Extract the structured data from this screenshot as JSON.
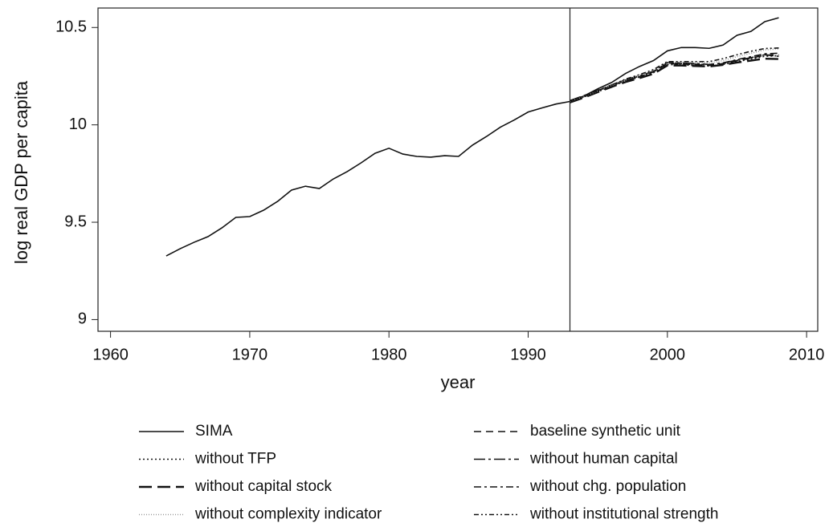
{
  "chart_data": {
    "type": "line",
    "x_label": "year",
    "y_label": "log real GDP per capita",
    "x": [
      1964,
      1965,
      1966,
      1967,
      1968,
      1969,
      1970,
      1971,
      1972,
      1973,
      1974,
      1975,
      1976,
      1977,
      1978,
      1979,
      1980,
      1981,
      1982,
      1983,
      1984,
      1985,
      1986,
      1987,
      1988,
      1989,
      1990,
      1991,
      1992,
      1993,
      1994,
      1995,
      1996,
      1997,
      1998,
      1999,
      2000,
      2001,
      2002,
      2003,
      2004,
      2005,
      2006,
      2007,
      2008
    ],
    "xlim": [
      1959.1,
      2010.8
    ],
    "xticks": [
      1960,
      1970,
      1980,
      1990,
      2000,
      2010
    ],
    "ylim": [
      8.94,
      10.6
    ],
    "yticks": [
      9,
      9.5,
      10,
      10.5
    ],
    "vline": 1993,
    "series": [
      {
        "name": "SIMA",
        "color": "#111111",
        "style": "solid",
        "values": [
          9.327,
          9.364,
          9.397,
          9.426,
          9.471,
          9.525,
          9.529,
          9.562,
          9.607,
          9.665,
          9.685,
          9.673,
          9.722,
          9.76,
          9.805,
          9.854,
          9.88,
          9.85,
          9.838,
          9.834,
          9.842,
          9.838,
          9.896,
          9.94,
          9.988,
          10.025,
          10.066,
          10.087,
          10.107,
          10.12,
          10.148,
          10.185,
          10.218,
          10.264,
          10.3,
          10.33,
          10.38,
          10.397,
          10.397,
          10.393,
          10.41,
          10.46,
          10.48,
          10.53,
          10.55
        ]
      },
      {
        "name": "baseline synthetic unit",
        "color": "#111111",
        "style": "dashed",
        "values": [
          null,
          null,
          null,
          null,
          null,
          null,
          null,
          null,
          null,
          null,
          null,
          null,
          null,
          null,
          null,
          null,
          null,
          null,
          null,
          null,
          null,
          null,
          null,
          null,
          null,
          null,
          null,
          null,
          null,
          10.12,
          10.145,
          10.172,
          10.2,
          10.228,
          10.248,
          10.272,
          10.315,
          10.312,
          10.31,
          10.305,
          10.315,
          10.33,
          10.342,
          10.358,
          10.36
        ]
      },
      {
        "name": "without TFP",
        "color": "#111111",
        "style": "dotted",
        "values": [
          null,
          null,
          null,
          null,
          null,
          null,
          null,
          null,
          null,
          null,
          null,
          null,
          null,
          null,
          null,
          null,
          null,
          null,
          null,
          null,
          null,
          null,
          null,
          null,
          null,
          null,
          null,
          null,
          null,
          10.118,
          10.143,
          10.17,
          10.198,
          10.225,
          10.245,
          10.268,
          10.31,
          10.308,
          10.305,
          10.302,
          10.31,
          10.325,
          10.338,
          10.352,
          10.355
        ]
      },
      {
        "name": "without human capital",
        "color": "#111111",
        "style": "longdashdot",
        "values": [
          null,
          null,
          null,
          null,
          null,
          null,
          null,
          null,
          null,
          null,
          null,
          null,
          null,
          null,
          null,
          null,
          null,
          null,
          null,
          null,
          null,
          null,
          null,
          null,
          null,
          null,
          null,
          null,
          null,
          10.125,
          10.15,
          10.178,
          10.205,
          10.232,
          10.252,
          10.275,
          10.32,
          10.318,
          10.315,
          10.31,
          10.318,
          10.332,
          10.345,
          10.36,
          10.352
        ]
      },
      {
        "name": "without capital stock",
        "color": "#111111",
        "style": "longdash",
        "values": [
          null,
          null,
          null,
          null,
          null,
          null,
          null,
          null,
          null,
          null,
          null,
          null,
          null,
          null,
          null,
          null,
          null,
          null,
          null,
          null,
          null,
          null,
          null,
          null,
          null,
          null,
          null,
          null,
          null,
          10.115,
          10.14,
          10.168,
          10.195,
          10.22,
          10.24,
          10.262,
          10.305,
          10.305,
          10.302,
          10.3,
          10.308,
          10.32,
          10.33,
          10.34,
          10.338
        ]
      },
      {
        "name": "without chg. population",
        "color": "#111111",
        "style": "dashdot",
        "values": [
          null,
          null,
          null,
          null,
          null,
          null,
          null,
          null,
          null,
          null,
          null,
          null,
          null,
          null,
          null,
          null,
          null,
          null,
          null,
          null,
          null,
          null,
          null,
          null,
          null,
          null,
          null,
          null,
          null,
          10.122,
          10.148,
          10.175,
          10.202,
          10.23,
          10.25,
          10.275,
          10.318,
          10.315,
          10.312,
          10.308,
          10.318,
          10.335,
          10.35,
          10.365,
          10.368
        ]
      },
      {
        "name": "without complexity indicator",
        "color": "#999999",
        "style": "finedotted",
        "values": [
          null,
          null,
          null,
          null,
          null,
          null,
          null,
          null,
          null,
          null,
          null,
          null,
          null,
          null,
          null,
          null,
          null,
          null,
          null,
          null,
          null,
          null,
          null,
          null,
          null,
          null,
          null,
          null,
          null,
          10.12,
          10.146,
          10.174,
          10.203,
          10.232,
          10.255,
          10.28,
          10.322,
          10.322,
          10.32,
          10.318,
          10.33,
          10.35,
          10.368,
          10.385,
          10.39
        ]
      },
      {
        "name": "without institutional strength",
        "color": "#111111",
        "style": "dashdotdot",
        "values": [
          null,
          null,
          null,
          null,
          null,
          null,
          null,
          null,
          null,
          null,
          null,
          null,
          null,
          null,
          null,
          null,
          null,
          null,
          null,
          null,
          null,
          null,
          null,
          null,
          null,
          null,
          null,
          null,
          null,
          10.122,
          10.148,
          10.176,
          10.205,
          10.235,
          10.258,
          10.284,
          10.325,
          10.325,
          10.325,
          10.325,
          10.34,
          10.36,
          10.378,
          10.392,
          10.395
        ]
      }
    ]
  }
}
